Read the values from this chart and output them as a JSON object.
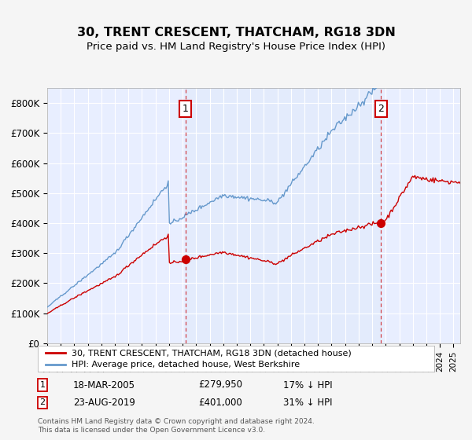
{
  "title": "30, TRENT CRESCENT, THATCHAM, RG18 3DN",
  "subtitle": "Price paid vs. HM Land Registry's House Price Index (HPI)",
  "legend_line1": "30, TRENT CRESCENT, THATCHAM, RG18 3DN (detached house)",
  "legend_line2": "HPI: Average price, detached house, West Berkshire",
  "annotation1_label": "1",
  "annotation1_date": "18-MAR-2005",
  "annotation1_price": "£279,950",
  "annotation1_hpi": "17% ↓ HPI",
  "annotation1_year": 2005.2,
  "annotation1_value": 279950,
  "annotation2_label": "2",
  "annotation2_date": "23-AUG-2019",
  "annotation2_price": "£401,000",
  "annotation2_hpi": "31% ↓ HPI",
  "annotation2_year": 2019.65,
  "annotation2_value": 401000,
  "footer": "Contains HM Land Registry data © Crown copyright and database right 2024.\nThis data is licensed under the Open Government Licence v3.0.",
  "background_color": "#f0f4ff",
  "plot_bg_color": "#e8eeff",
  "grid_color": "#ffffff",
  "red_line_color": "#cc0000",
  "blue_line_color": "#6699cc",
  "highlight_fill": "#dce8f8",
  "ylim": [
    0,
    850000
  ],
  "xlim_start": 1995,
  "xlim_end": 2025.5
}
